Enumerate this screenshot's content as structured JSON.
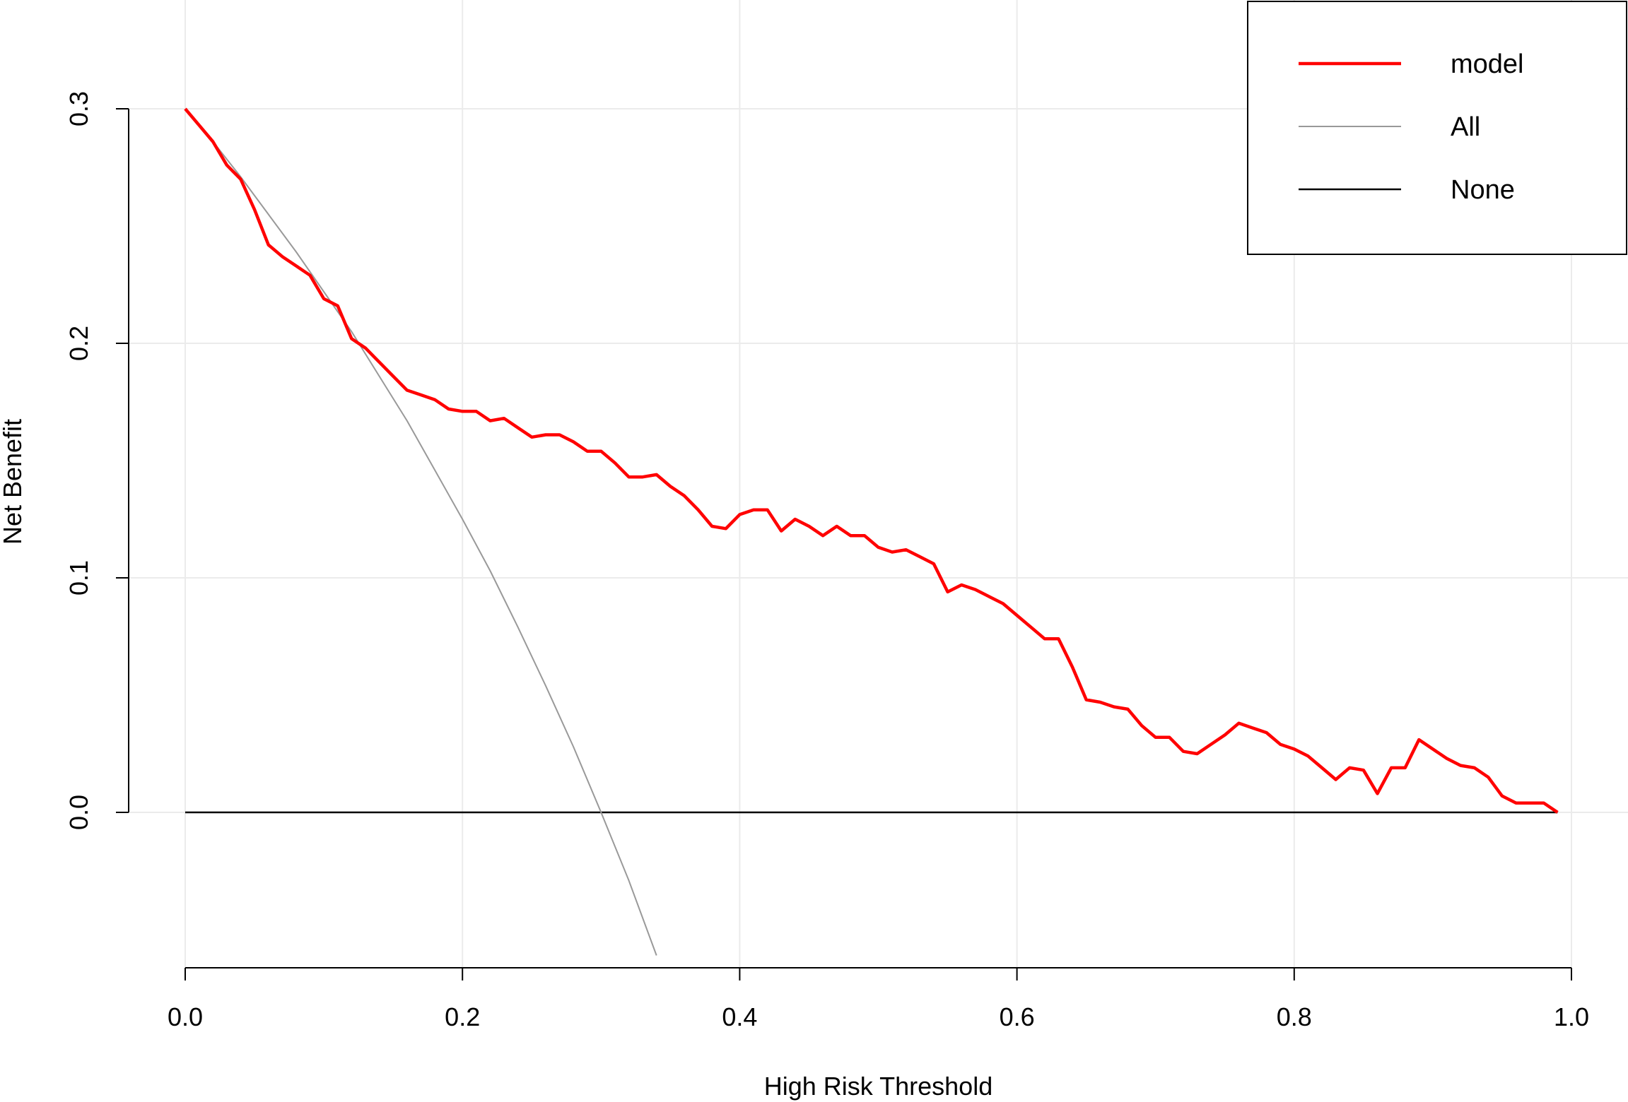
{
  "chart_data": {
    "type": "line",
    "xlabel": "High Risk Threshold",
    "ylabel": "Net Benefit",
    "xlim": [
      0.0,
      1.0
    ],
    "ylim": [
      -0.066,
      0.3
    ],
    "x_ticks": [
      "0.0",
      "0.2",
      "0.4",
      "0.6",
      "0.8",
      "1.0"
    ],
    "y_ticks": [
      "0.0",
      "0.1",
      "0.2",
      "0.3"
    ],
    "grid": true,
    "legend": {
      "position": "top-right",
      "entries": [
        "model",
        "All",
        "None"
      ]
    },
    "series": [
      {
        "name": "model",
        "color": "#ff0000",
        "x": [
          0.0,
          0.01,
          0.02,
          0.03,
          0.04,
          0.05,
          0.06,
          0.07,
          0.08,
          0.09,
          0.1,
          0.11,
          0.12,
          0.13,
          0.14,
          0.15,
          0.16,
          0.17,
          0.18,
          0.19,
          0.2,
          0.21,
          0.22,
          0.23,
          0.24,
          0.25,
          0.26,
          0.27,
          0.28,
          0.29,
          0.3,
          0.31,
          0.32,
          0.33,
          0.34,
          0.35,
          0.36,
          0.37,
          0.38,
          0.39,
          0.4,
          0.41,
          0.42,
          0.43,
          0.44,
          0.45,
          0.46,
          0.47,
          0.48,
          0.49,
          0.5,
          0.51,
          0.52,
          0.53,
          0.54,
          0.55,
          0.56,
          0.57,
          0.58,
          0.59,
          0.6,
          0.61,
          0.62,
          0.63,
          0.64,
          0.65,
          0.66,
          0.67,
          0.68,
          0.69,
          0.7,
          0.71,
          0.72,
          0.73,
          0.74,
          0.75,
          0.76,
          0.77,
          0.78,
          0.79,
          0.8,
          0.81,
          0.82,
          0.83,
          0.84,
          0.85,
          0.86,
          0.87,
          0.88,
          0.89,
          0.9,
          0.91,
          0.92,
          0.93,
          0.94,
          0.95,
          0.96,
          0.97,
          0.98,
          0.99
        ],
        "values": [
          0.3,
          0.293,
          0.286,
          0.276,
          0.27,
          0.257,
          0.242,
          0.237,
          0.233,
          0.229,
          0.219,
          0.216,
          0.202,
          0.198,
          0.192,
          0.186,
          0.18,
          0.178,
          0.176,
          0.172,
          0.171,
          0.171,
          0.167,
          0.168,
          0.164,
          0.16,
          0.161,
          0.161,
          0.158,
          0.154,
          0.154,
          0.149,
          0.143,
          0.143,
          0.144,
          0.139,
          0.135,
          0.129,
          0.122,
          0.121,
          0.127,
          0.129,
          0.129,
          0.12,
          0.125,
          0.122,
          0.118,
          0.122,
          0.118,
          0.118,
          0.113,
          0.111,
          0.112,
          0.109,
          0.106,
          0.094,
          0.097,
          0.095,
          0.092,
          0.089,
          0.084,
          0.079,
          0.074,
          0.074,
          0.062,
          0.048,
          0.047,
          0.045,
          0.044,
          0.037,
          0.032,
          0.032,
          0.026,
          0.025,
          0.029,
          0.033,
          0.038,
          0.036,
          0.034,
          0.029,
          0.027,
          0.024,
          0.019,
          0.014,
          0.019,
          0.018,
          0.008,
          0.019,
          0.019,
          0.031,
          0.027,
          0.023,
          0.02,
          0.019,
          0.015,
          0.007,
          0.004,
          0.004,
          0.004,
          0.0
        ]
      },
      {
        "name": "All",
        "color": "#999999",
        "x": [
          0.0,
          0.02,
          0.04,
          0.06,
          0.08,
          0.1,
          0.12,
          0.14,
          0.16,
          0.18,
          0.2,
          0.22,
          0.24,
          0.26,
          0.28,
          0.3,
          0.32,
          0.34
        ],
        "values": [
          0.3,
          0.286,
          0.271,
          0.255,
          0.239,
          0.222,
          0.205,
          0.186,
          0.167,
          0.146,
          0.125,
          0.103,
          0.079,
          0.054,
          0.028,
          0.0,
          -0.029,
          -0.061
        ]
      },
      {
        "name": "None",
        "color": "#000000",
        "x": [
          0.0,
          0.99
        ],
        "values": [
          0.0,
          0.0
        ]
      }
    ]
  }
}
